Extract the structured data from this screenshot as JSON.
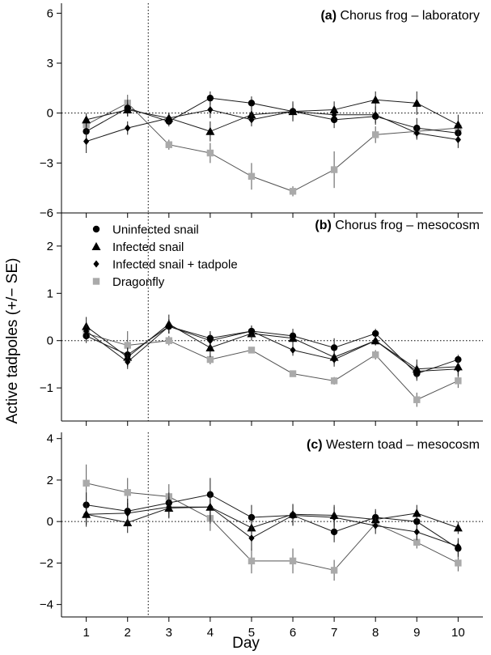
{
  "figure": {
    "ylabel": "Active tadpoles (+/− SE)",
    "xlabel": "Day",
    "legend": [
      {
        "label": "Uninfected snail",
        "marker": "circle",
        "color": "#000000"
      },
      {
        "label": "Infected snail",
        "marker": "triangle",
        "color": "#000000"
      },
      {
        "label": "Infected snail + tadpole",
        "marker": "diamond",
        "color": "#000000"
      },
      {
        "label": "Dragonfly",
        "marker": "square",
        "color": "#aaaaaa"
      }
    ],
    "legend_position": "top-left of panel (b)"
  },
  "chart_data": [
    {
      "type": "line",
      "panel_tag": "(a)",
      "title": "Chorus frog – laboratory",
      "ylim": [
        -6,
        6.6
      ],
      "yticks": [
        -6,
        -3,
        0,
        3,
        6
      ],
      "x": [
        1,
        2,
        3,
        4,
        5,
        6,
        7,
        8,
        9,
        10
      ],
      "xlim": [
        0.4,
        10.6
      ],
      "vline": 2.5,
      "hline": 0,
      "series": [
        {
          "name": "Uninfected snail",
          "values": [
            -1.1,
            0.3,
            -0.5,
            0.9,
            0.6,
            0.1,
            -0.4,
            -0.2,
            -0.9,
            -1.2
          ],
          "se": [
            0.5,
            0.5,
            0.3,
            0.4,
            0.4,
            0.6,
            0.5,
            0.5,
            0.6,
            0.6
          ]
        },
        {
          "name": "Infected snail",
          "values": [
            -0.4,
            0.2,
            -0.3,
            -1.1,
            -0.1,
            0.1,
            0.2,
            0.8,
            0.6,
            -0.7
          ],
          "se": [
            0.4,
            0.4,
            0.3,
            0.6,
            0.6,
            0.5,
            0.5,
            0.5,
            0.7,
            0.6
          ]
        },
        {
          "name": "Infected snail + tadpole",
          "values": [
            -1.7,
            -0.9,
            -0.3,
            0.2,
            -0.4,
            0.1,
            -0.1,
            -0.1,
            -1.2,
            -1.6
          ],
          "se": [
            0.7,
            0.4,
            0.3,
            0.5,
            0.4,
            0.4,
            0.3,
            0.5,
            0.4,
            0.5
          ]
        },
        {
          "name": "Dragonfly",
          "values": [
            -0.7,
            0.6,
            -1.9,
            -2.4,
            -3.8,
            -4.7,
            -3.4,
            -1.3,
            -1.1,
            -0.9
          ],
          "se": [
            0.4,
            0.5,
            0.3,
            0.6,
            0.8,
            0.3,
            1.1,
            0.5,
            0.4,
            0.4
          ]
        }
      ]
    },
    {
      "type": "line",
      "panel_tag": "(b)",
      "title": "Chorus frog – mesocosm",
      "ylim": [
        -1.7,
        2.7
      ],
      "yticks": [
        -1,
        0,
        1,
        2
      ],
      "x": [
        1,
        2,
        3,
        4,
        5,
        6,
        7,
        8,
        9,
        10
      ],
      "xlim": [
        0.4,
        10.6
      ],
      "vline": 2.5,
      "hline": 0,
      "series": [
        {
          "name": "Uninfected snail",
          "values": [
            0.1,
            -0.3,
            0.3,
            0.05,
            0.2,
            0.1,
            -0.15,
            0.15,
            -0.7,
            -0.4
          ],
          "se": [
            0.15,
            0.15,
            0.15,
            0.15,
            0.12,
            0.15,
            0.2,
            0.1,
            0.15,
            0.1
          ]
        },
        {
          "name": "Infected snail",
          "values": [
            0.3,
            -0.35,
            0.35,
            -0.15,
            0.15,
            0.05,
            -0.35,
            0.0,
            -0.6,
            -0.55
          ],
          "se": [
            0.2,
            0.2,
            0.2,
            0.2,
            0.15,
            0.15,
            0.15,
            0.1,
            0.2,
            0.15
          ]
        },
        {
          "name": "Infected snail + tadpole",
          "values": [
            0.2,
            -0.45,
            0.3,
            0.0,
            0.2,
            -0.2,
            -0.4,
            0.0,
            -0.65,
            -0.6
          ],
          "se": [
            0.15,
            0.15,
            0.15,
            0.15,
            0.12,
            0.12,
            0.15,
            0.1,
            0.15,
            0.15
          ]
        },
        {
          "name": "Dragonfly",
          "values": [
            0.15,
            -0.1,
            0.0,
            -0.4,
            -0.2,
            -0.7,
            -0.85,
            -0.3,
            -1.25,
            -0.85
          ],
          "se": [
            0.15,
            0.3,
            0.1,
            0.1,
            0.05,
            0.05,
            0.08,
            0.1,
            0.15,
            0.15
          ]
        }
      ]
    },
    {
      "type": "line",
      "panel_tag": "(c)",
      "title": "Western toad – mesocosm",
      "ylim": [
        -4.6,
        4.3
      ],
      "yticks": [
        -4,
        -2,
        0,
        2,
        4
      ],
      "x": [
        1,
        2,
        3,
        4,
        5,
        6,
        7,
        8,
        9,
        10
      ],
      "xlim": [
        0.4,
        10.6
      ],
      "vline": 2.5,
      "hline": 0,
      "xticks": [
        1,
        2,
        3,
        4,
        5,
        6,
        7,
        8,
        9,
        10
      ],
      "series": [
        {
          "name": "Uninfected snail",
          "values": [
            0.8,
            0.5,
            0.9,
            1.3,
            0.2,
            0.3,
            -0.5,
            0.2,
            0.0,
            -1.3
          ],
          "se": [
            0.6,
            0.6,
            0.5,
            0.8,
            0.6,
            0.5,
            0.5,
            0.4,
            0.5,
            0.4
          ]
        },
        {
          "name": "Infected snail",
          "values": [
            0.35,
            -0.05,
            0.65,
            0.7,
            -0.3,
            0.35,
            0.3,
            0.1,
            0.4,
            -0.3
          ],
          "se": [
            0.6,
            0.5,
            0.5,
            0.8,
            0.6,
            0.5,
            0.5,
            0.4,
            0.4,
            0.3
          ]
        },
        {
          "name": "Infected snail + tadpole",
          "values": [
            0.35,
            0.4,
            0.7,
            0.7,
            -0.8,
            0.3,
            0.2,
            -0.2,
            -0.5,
            -1.2
          ],
          "se": [
            0.5,
            0.5,
            0.5,
            0.6,
            0.6,
            0.5,
            0.5,
            0.4,
            0.4,
            0.4
          ]
        },
        {
          "name": "Dragonfly",
          "values": [
            1.85,
            1.4,
            1.2,
            0.15,
            -1.9,
            -1.9,
            -2.35,
            -0.1,
            -1.0,
            -2.0
          ],
          "se": [
            0.9,
            0.7,
            0.6,
            0.6,
            0.6,
            0.6,
            0.5,
            0.3,
            0.3,
            0.4
          ]
        }
      ]
    }
  ]
}
